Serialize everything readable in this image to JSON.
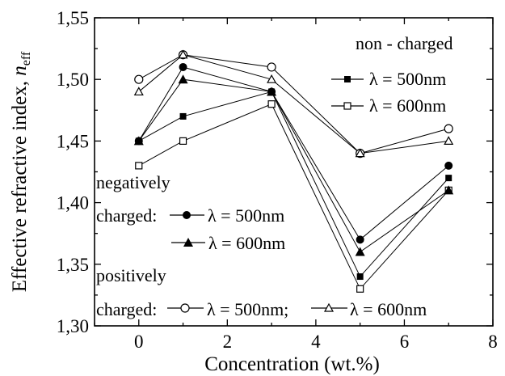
{
  "chart_data": {
    "type": "line",
    "xlabel": "Concentration (wt.%)",
    "ylabel": "Effective refractive index, ",
    "ylabel_symbol": "n",
    "ylabel_subscript": "eff",
    "xlim": [
      -1,
      8
    ],
    "ylim": [
      1.3,
      1.55
    ],
    "xticks": [
      0,
      2,
      4,
      6,
      8
    ],
    "xtick_labels": [
      "0",
      "2",
      "4",
      "6",
      "8"
    ],
    "yticks": [
      1.3,
      1.35,
      1.4,
      1.45,
      1.5,
      1.55
    ],
    "ytick_labels": [
      "1,30",
      "1,35",
      "1,40",
      "1,45",
      "1,50",
      "1,55"
    ],
    "x": [
      0,
      1,
      3,
      5,
      7
    ],
    "series": [
      {
        "name": "non - charged λ = 500nm",
        "marker": "square-filled",
        "values": [
          1.45,
          1.47,
          1.49,
          1.34,
          1.42
        ]
      },
      {
        "name": "non - charged λ = 600nm",
        "marker": "square-open",
        "values": [
          1.43,
          1.45,
          1.48,
          1.33,
          1.41
        ]
      },
      {
        "name": "negatively charged λ = 500nm",
        "marker": "circle-filled",
        "values": [
          1.45,
          1.51,
          1.49,
          1.37,
          1.43
        ]
      },
      {
        "name": "negatively charged λ = 600nm",
        "marker": "triangle-filled",
        "values": [
          1.45,
          1.5,
          1.49,
          1.36,
          1.41
        ]
      },
      {
        "name": "positively charged λ = 500nm",
        "marker": "circle-open",
        "values": [
          1.5,
          1.52,
          1.51,
          1.44,
          1.46
        ]
      },
      {
        "name": "positively charged λ = 600nm",
        "marker": "triangle-open",
        "values": [
          1.49,
          1.52,
          1.5,
          1.44,
          1.45
        ]
      }
    ],
    "legend": {
      "non_charged_header": "non - charged",
      "lambda_500": "λ = 500nm",
      "lambda_600": "λ = 600nm",
      "lambda_500_semicolon": "λ = 500nm;",
      "negatively_line1": "negatively",
      "negatively_line2": "charged:",
      "positively_line1": "positively",
      "positively_line2": "charged:"
    },
    "grid": false
  }
}
